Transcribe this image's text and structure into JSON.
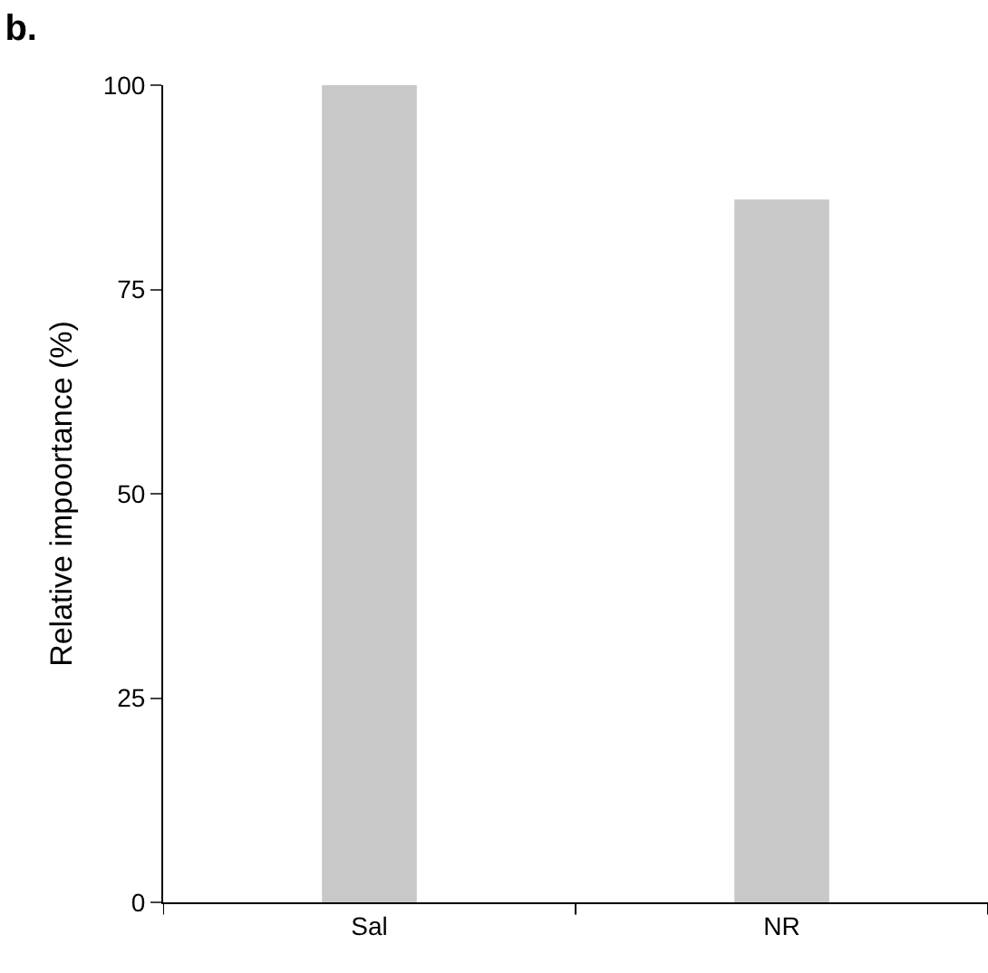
{
  "chart_data": {
    "type": "bar",
    "title": "b.",
    "ylabel": "Relative impoortance (%)",
    "categories": [
      "Sal",
      "NR"
    ],
    "values": [
      100,
      86
    ],
    "color": "#c8c8c8",
    "ylim": [
      0,
      100
    ],
    "yticks": [
      0,
      25,
      50,
      75,
      100
    ],
    "grid": false
  }
}
